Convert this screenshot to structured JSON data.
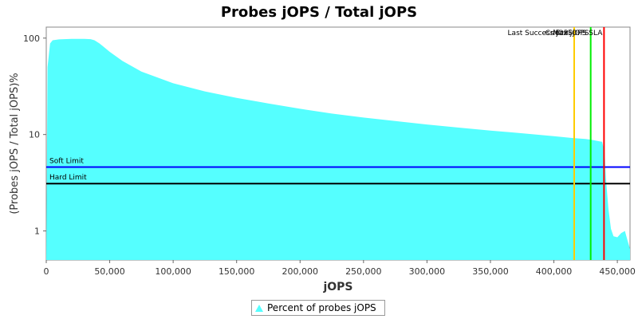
{
  "chart_data": {
    "type": "area",
    "title": "Probes jOPS / Total jOPS",
    "xlabel": "jOPS",
    "ylabel": "(Probes jOPS / Total jOPS)%",
    "y_scale": "log",
    "xlim": [
      0,
      460000
    ],
    "ylim": [
      0.5,
      130
    ],
    "x_ticks": [
      0,
      50000,
      100000,
      150000,
      200000,
      250000,
      300000,
      350000,
      400000,
      450000
    ],
    "x_tick_labels": [
      "0",
      "50,000",
      "100,000",
      "150,000",
      "200,000",
      "250,000",
      "300,000",
      "350,000",
      "400,000",
      "450,000"
    ],
    "y_ticks": [
      1,
      10,
      100
    ],
    "y_tick_labels": [
      "1",
      "10",
      "100"
    ],
    "grid": false,
    "legend_position": "bottom",
    "series": [
      {
        "name": "Percent of probes jOPS",
        "color": "#55ffff",
        "x": [
          0,
          1000,
          3000,
          5000,
          10000,
          20000,
          30000,
          35000,
          38000,
          42000,
          50000,
          60000,
          75000,
          100000,
          125000,
          150000,
          175000,
          200000,
          225000,
          250000,
          275000,
          300000,
          325000,
          350000,
          375000,
          400000,
          415000,
          425000,
          430000,
          436000,
          438000,
          440000,
          441000,
          443000,
          445000,
          447000,
          450000,
          453000,
          456000,
          458000,
          460000
        ],
        "values": [
          0.5,
          50,
          88,
          95,
          97,
          98,
          98,
          97.5,
          95,
          88,
          72,
          58,
          45,
          34,
          28,
          24,
          21,
          18.5,
          16.5,
          15,
          13.8,
          12.7,
          11.8,
          11,
          10.3,
          9.6,
          9.2,
          9.0,
          8.8,
          8.5,
          8.4,
          6.5,
          3.5,
          1.7,
          1.05,
          0.88,
          0.86,
          0.95,
          1.0,
          0.8,
          0.65
        ]
      }
    ],
    "hlines": [
      {
        "label": "Soft Limit",
        "y": 4.6,
        "color": "#0000ff"
      },
      {
        "label": "Hard Limit",
        "y": 3.1,
        "color": "#000000"
      }
    ],
    "vlines": [
      {
        "label": "Last Success jOPS",
        "x": 416000,
        "color": "#ffcc00"
      },
      {
        "label": "Critical jOPS",
        "x": 429000,
        "color": "#00ee00"
      },
      {
        "label": "Max jOPS SLA",
        "x": 439500,
        "color": "#ff0000"
      }
    ]
  }
}
